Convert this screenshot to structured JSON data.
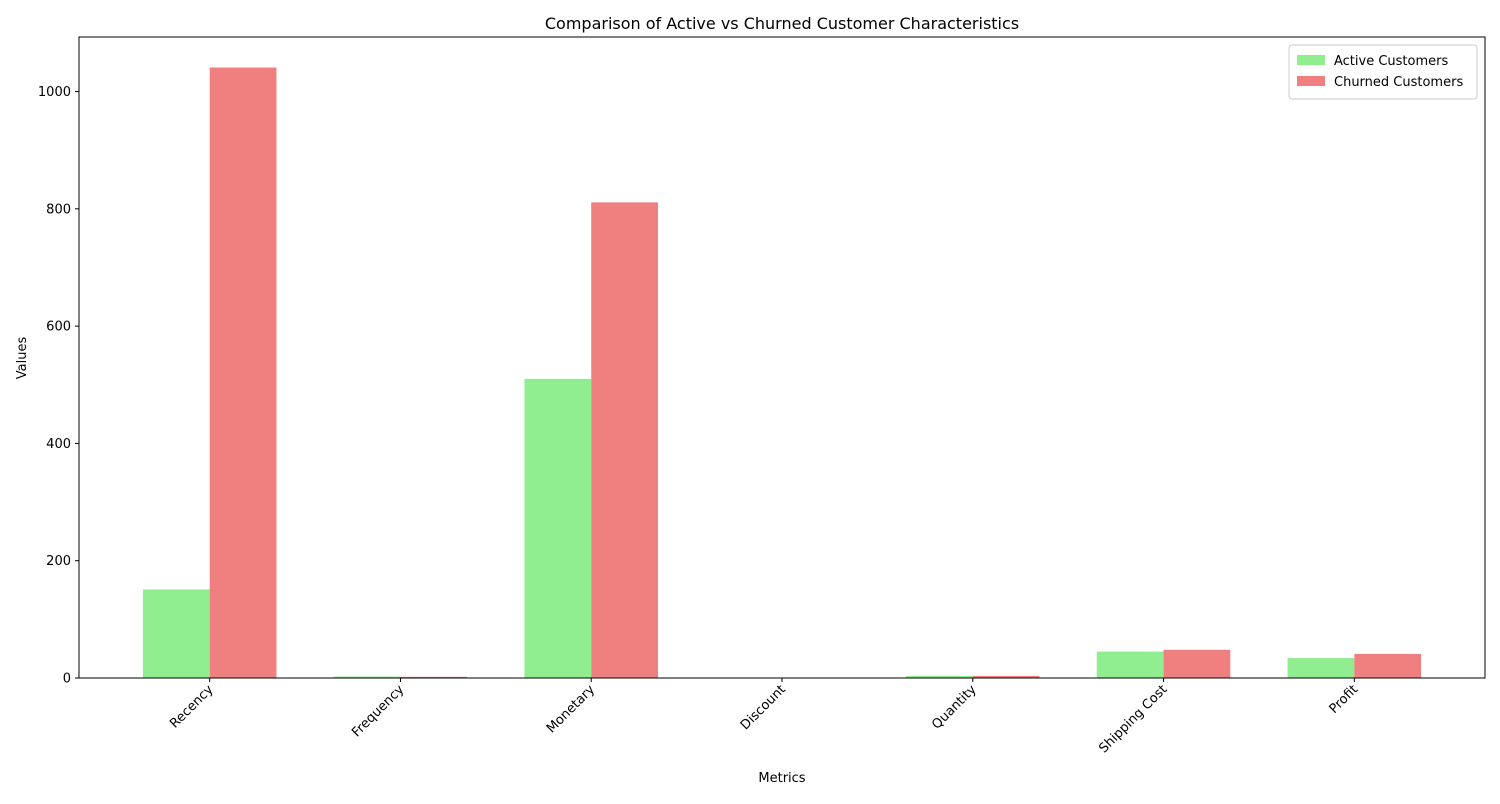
{
  "chart_data": {
    "type": "bar",
    "title": "Comparison of Active vs Churned Customer Characteristics",
    "xlabel": "Metrics",
    "ylabel": "Values",
    "categories": [
      "Recency",
      "Frequency",
      "Monetary",
      "Discount",
      "Quantity",
      "Shipping Cost",
      "Profit"
    ],
    "series": [
      {
        "name": "Active Customers",
        "color": "#90ee90",
        "values": [
          151,
          2.5,
          510,
          0.14,
          3.5,
          45,
          34
        ]
      },
      {
        "name": "Churned Customers",
        "color": "#f08080",
        "values": [
          1041,
          2.0,
          811,
          0.15,
          3.6,
          48,
          41
        ]
      }
    ],
    "ylim": [
      0,
      1093
    ],
    "yticks": [
      0,
      200,
      400,
      600,
      800,
      1000
    ],
    "grid": false,
    "legend_position": "top-right",
    "xtick_rotation_deg": 45
  }
}
